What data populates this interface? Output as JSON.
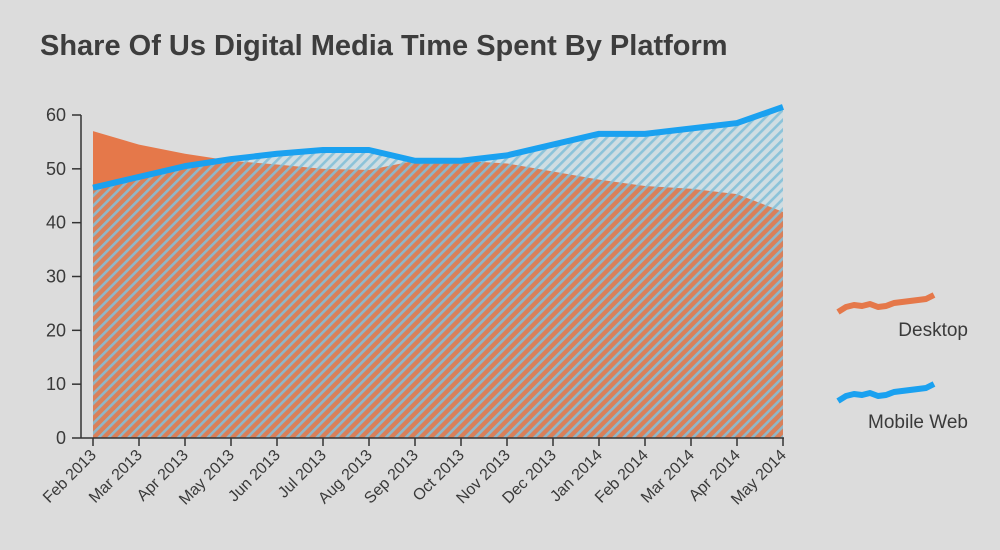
{
  "chart_data": {
    "type": "area",
    "title": "Share Of Us Digital Media Time Spent By Platform",
    "xlabel": "",
    "ylabel": "",
    "ylim": [
      0,
      60
    ],
    "yticks": [
      0,
      10,
      20,
      30,
      40,
      50,
      60
    ],
    "categories": [
      "Feb 2013",
      "Mar 2013",
      "Apr 2013",
      "May 2013",
      "Jun 2013",
      "Jul 2013",
      "Aug 2013",
      "Sep 2013",
      "Oct 2013",
      "Nov 2013",
      "Dec 2013",
      "Jan 2014",
      "Feb 2014",
      "Mar 2014",
      "Apr 2014",
      "May 2014"
    ],
    "series": [
      {
        "name": "Desktop",
        "color": "#e5784a",
        "values": [
          57,
          54.5,
          52.8,
          51.5,
          50.8,
          50,
          49.8,
          51.5,
          51.5,
          51,
          49.5,
          48,
          46.8,
          46.3,
          45.3,
          42
        ]
      },
      {
        "name": "Mobile Web",
        "color": "#1aa1f0",
        "values": [
          46.5,
          48.5,
          50.5,
          51.8,
          52.8,
          53.5,
          53.5,
          51.5,
          51.5,
          52.5,
          54.5,
          56.5,
          56.5,
          57.5,
          58.5,
          61.5
        ]
      }
    ],
    "legend": "right"
  }
}
